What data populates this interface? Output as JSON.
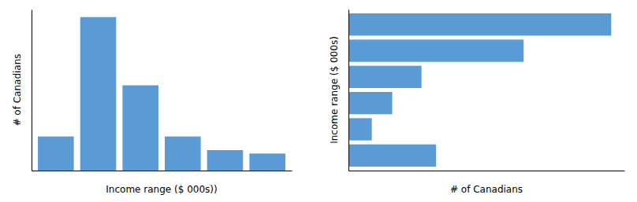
{
  "chart_data": [
    {
      "type": "bar",
      "categories": [
        null,
        null,
        null,
        null,
        null,
        null
      ],
      "values": [
        2.0,
        9.0,
        5.0,
        2.0,
        1.2,
        1.0
      ],
      "color": "#5B9BD5",
      "x_label": "Income range ($ 000s))",
      "y_label": "# of Canadians",
      "ylim": [
        0,
        9.45
      ],
      "yticks": [],
      "grid": false,
      "tick_labels": false
    },
    {
      "type": "bar",
      "orientation": "horizontal",
      "categories": [
        null,
        null,
        null,
        null,
        null,
        null
      ],
      "values": [
        9.0,
        6.0,
        2.5,
        1.5,
        0.8,
        3.0
      ],
      "color": "#5B9BD5",
      "x_label": "# of Canadians",
      "y_label": "Income range ($ 000s)",
      "xlim": [
        0,
        9.45
      ],
      "xticks": [],
      "grid": false,
      "tick_labels": false
    }
  ]
}
